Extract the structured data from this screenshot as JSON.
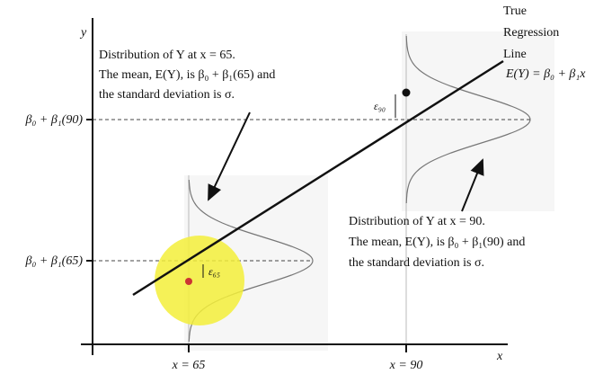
{
  "axes": {
    "y_label": "y",
    "x_label": "x"
  },
  "regression_line": {
    "label": [
      "True",
      "Regression",
      "Line"
    ],
    "equation": "E(Y) = β₀ + β₁x"
  },
  "annotations": [
    {
      "lines": [
        "Distribution of Y at x = 65.",
        "The mean, E(Y), is β₀ + β₁(65) and",
        "the standard deviation is σ."
      ]
    },
    {
      "lines": [
        "Distribution of Y at x = 90.",
        "The mean, E(Y), is β₀ + β₁(90) and",
        "the standard deviation is σ."
      ]
    }
  ],
  "y_tick_labels": [
    "β₀ + β₁(90)",
    "β₀ + β₁(65)"
  ],
  "x_tick_labels": [
    "x = 65",
    "x = 90"
  ],
  "errors": [
    "ε₉₀",
    "ε₆₅"
  ]
}
